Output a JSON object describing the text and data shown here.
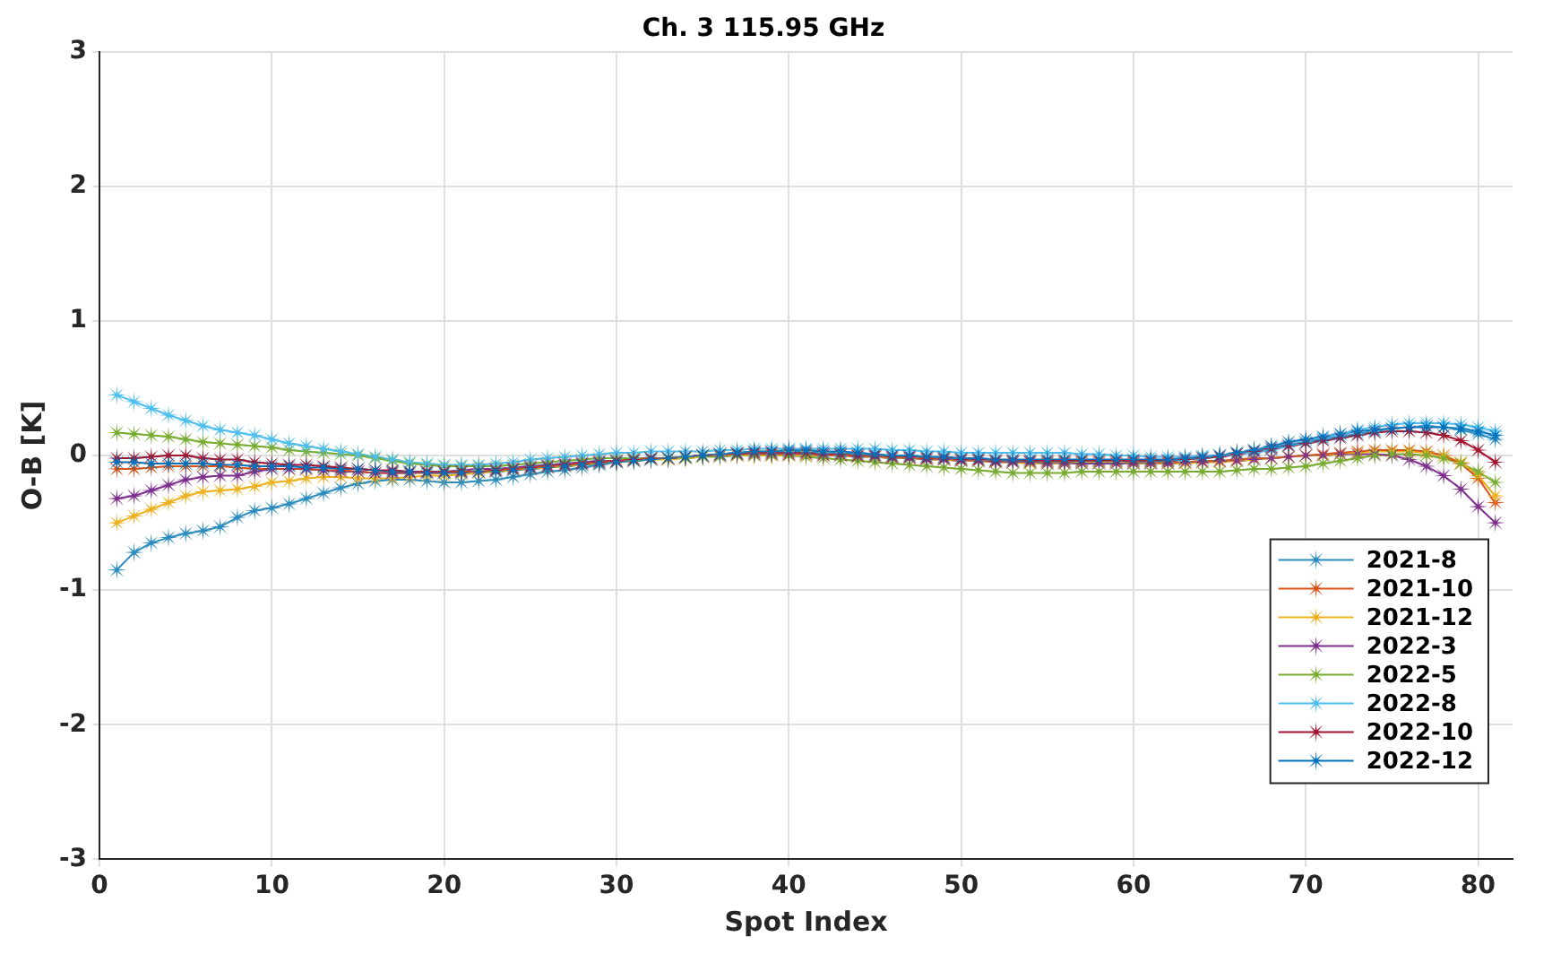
{
  "chart_data": {
    "type": "line",
    "title": "Ch. 3 115.95 GHz",
    "xlabel": "Spot Index",
    "ylabel": "O-B [K]",
    "x": [
      1,
      2,
      3,
      4,
      5,
      6,
      7,
      8,
      9,
      10,
      11,
      12,
      13,
      14,
      15,
      16,
      17,
      18,
      19,
      20,
      21,
      22,
      23,
      24,
      25,
      26,
      27,
      28,
      29,
      30,
      31,
      32,
      33,
      34,
      35,
      36,
      37,
      38,
      39,
      40,
      41,
      42,
      43,
      44,
      45,
      46,
      47,
      48,
      49,
      50,
      51,
      52,
      53,
      54,
      55,
      56,
      57,
      58,
      59,
      60,
      61,
      62,
      63,
      64,
      65,
      66,
      67,
      68,
      69,
      70,
      71,
      72,
      73,
      74,
      75,
      76,
      77,
      78,
      79,
      80,
      81
    ],
    "xlim": [
      0,
      82
    ],
    "xticks": [
      0,
      10,
      20,
      30,
      40,
      50,
      60,
      70,
      80
    ],
    "ylim": [
      -3,
      3
    ],
    "yticks": [
      -3,
      -2,
      -1,
      0,
      1,
      2,
      3
    ],
    "grid": true,
    "legend": "bottom right",
    "marker": "star",
    "line_style": "solid",
    "series": [
      {
        "name": "2021-8",
        "color": "#2b8cbe",
        "values": [
          -0.85,
          -0.72,
          -0.65,
          -0.61,
          -0.58,
          -0.56,
          -0.53,
          -0.46,
          -0.41,
          -0.39,
          -0.36,
          -0.32,
          -0.28,
          -0.24,
          -0.21,
          -0.19,
          -0.18,
          -0.18,
          -0.19,
          -0.2,
          -0.2,
          -0.19,
          -0.18,
          -0.16,
          -0.14,
          -0.12,
          -0.11,
          -0.09,
          -0.07,
          -0.05,
          -0.04,
          -0.03,
          -0.02,
          -0.01,
          0,
          0.01,
          0.02,
          0.03,
          0.03,
          0.03,
          0.03,
          0.02,
          0.02,
          0.01,
          0,
          0,
          -0.01,
          -0.01,
          -0.02,
          -0.03,
          -0.03,
          -0.04,
          -0.04,
          -0.05,
          -0.05,
          -0.05,
          -0.05,
          -0.05,
          -0.05,
          -0.05,
          -0.05,
          -0.04,
          -0.03,
          -0.02,
          0,
          0.02,
          0.04,
          0.06,
          0.08,
          0.1,
          0.12,
          0.14,
          0.16,
          0.18,
          0.2,
          0.21,
          0.22,
          0.21,
          0.19,
          0.16,
          0.12
        ]
      },
      {
        "name": "2021-10",
        "color": "#d95319",
        "values": [
          -0.1,
          -0.1,
          -0.09,
          -0.08,
          -0.08,
          -0.08,
          -0.08,
          -0.09,
          -0.1,
          -0.1,
          -0.1,
          -0.1,
          -0.11,
          -0.11,
          -0.12,
          -0.13,
          -0.13,
          -0.13,
          -0.13,
          -0.13,
          -0.12,
          -0.12,
          -0.11,
          -0.1,
          -0.09,
          -0.08,
          -0.07,
          -0.06,
          -0.05,
          -0.04,
          -0.03,
          -0.02,
          -0.02,
          -0.01,
          0,
          0,
          0.01,
          0.01,
          0.01,
          0.01,
          0.01,
          0,
          0,
          0,
          -0.01,
          -0.01,
          -0.02,
          -0.02,
          -0.03,
          -0.03,
          -0.04,
          -0.04,
          -0.05,
          -0.05,
          -0.05,
          -0.05,
          -0.05,
          -0.05,
          -0.05,
          -0.05,
          -0.05,
          -0.05,
          -0.05,
          -0.04,
          -0.04,
          -0.03,
          -0.02,
          -0.02,
          -0.01,
          0,
          0.01,
          0.02,
          0.03,
          0.04,
          0.04,
          0.04,
          0.03,
          0,
          -0.06,
          -0.17,
          -0.35
        ]
      },
      {
        "name": "2021-12",
        "color": "#edb120",
        "values": [
          -0.5,
          -0.45,
          -0.4,
          -0.35,
          -0.3,
          -0.27,
          -0.26,
          -0.25,
          -0.23,
          -0.2,
          -0.19,
          -0.17,
          -0.16,
          -0.16,
          -0.17,
          -0.17,
          -0.17,
          -0.16,
          -0.15,
          -0.15,
          -0.14,
          -0.13,
          -0.12,
          -0.11,
          -0.1,
          -0.09,
          -0.08,
          -0.07,
          -0.06,
          -0.05,
          -0.04,
          -0.03,
          -0.03,
          -0.02,
          -0.01,
          0,
          0,
          0,
          0,
          0,
          0,
          0,
          0,
          -0.01,
          -0.01,
          -0.02,
          -0.02,
          -0.03,
          -0.03,
          -0.04,
          -0.04,
          -0.05,
          -0.05,
          -0.06,
          -0.06,
          -0.06,
          -0.05,
          -0.05,
          -0.05,
          -0.06,
          -0.06,
          -0.06,
          -0.06,
          -0.05,
          -0.05,
          -0.04,
          -0.03,
          -0.02,
          -0.01,
          0,
          0,
          0.01,
          0.02,
          0.03,
          0.03,
          0.03,
          0.02,
          0,
          -0.05,
          -0.15,
          -0.3
        ]
      },
      {
        "name": "2022-3",
        "color": "#7e2f8e",
        "values": [
          -0.32,
          -0.3,
          -0.26,
          -0.22,
          -0.18,
          -0.16,
          -0.15,
          -0.15,
          -0.12,
          -0.1,
          -0.1,
          -0.1,
          -0.11,
          -0.12,
          -0.12,
          -0.13,
          -0.13,
          -0.13,
          -0.12,
          -0.12,
          -0.11,
          -0.1,
          -0.1,
          -0.09,
          -0.08,
          -0.07,
          -0.06,
          -0.05,
          -0.04,
          -0.04,
          -0.03,
          -0.02,
          -0.02,
          -0.01,
          0,
          0,
          0.01,
          0.01,
          0.01,
          0.01,
          0.01,
          0,
          0,
          -0.01,
          -0.01,
          -0.02,
          -0.02,
          -0.03,
          -0.03,
          -0.04,
          -0.04,
          -0.05,
          -0.05,
          -0.05,
          -0.06,
          -0.06,
          -0.06,
          -0.06,
          -0.06,
          -0.06,
          -0.06,
          -0.06,
          -0.05,
          -0.05,
          -0.04,
          -0.04,
          -0.03,
          -0.02,
          -0.01,
          0,
          0,
          0.01,
          0.01,
          0.01,
          0,
          -0.03,
          -0.08,
          -0.15,
          -0.25,
          -0.38,
          -0.5
        ]
      },
      {
        "name": "2022-5",
        "color": "#77ac30",
        "values": [
          0.17,
          0.16,
          0.15,
          0.14,
          0.12,
          0.1,
          0.09,
          0.08,
          0.07,
          0.06,
          0.04,
          0.03,
          0.02,
          0.01,
          0,
          -0.02,
          -0.04,
          -0.06,
          -0.07,
          -0.08,
          -0.08,
          -0.08,
          -0.08,
          -0.07,
          -0.06,
          -0.05,
          -0.04,
          -0.03,
          -0.02,
          -0.02,
          -0.02,
          -0.02,
          -0.02,
          -0.02,
          -0.01,
          -0.01,
          0,
          0,
          0,
          0,
          -0.01,
          -0.02,
          -0.03,
          -0.04,
          -0.05,
          -0.06,
          -0.07,
          -0.08,
          -0.09,
          -0.1,
          -0.11,
          -0.12,
          -0.13,
          -0.13,
          -0.13,
          -0.13,
          -0.12,
          -0.12,
          -0.12,
          -0.12,
          -0.12,
          -0.12,
          -0.12,
          -0.12,
          -0.12,
          -0.11,
          -0.1,
          -0.1,
          -0.09,
          -0.08,
          -0.06,
          -0.04,
          -0.02,
          0,
          0.01,
          0.01,
          0,
          -0.02,
          -0.06,
          -0.12,
          -0.2
        ]
      },
      {
        "name": "2022-8",
        "color": "#4dbeee",
        "values": [
          0.45,
          0.4,
          0.35,
          0.3,
          0.26,
          0.22,
          0.19,
          0.17,
          0.15,
          0.12,
          0.09,
          0.07,
          0.05,
          0.03,
          0.01,
          -0.01,
          -0.03,
          -0.05,
          -0.06,
          -0.07,
          -0.07,
          -0.07,
          -0.06,
          -0.05,
          -0.03,
          -0.02,
          -0.01,
          0,
          0.01,
          0.02,
          0.02,
          0.03,
          0.03,
          0.03,
          0.03,
          0.04,
          0.04,
          0.05,
          0.05,
          0.05,
          0.05,
          0.05,
          0.05,
          0.05,
          0.05,
          0.04,
          0.04,
          0.03,
          0.03,
          0.02,
          0.02,
          0.02,
          0.02,
          0.02,
          0.02,
          0.02,
          0.01,
          0.01,
          0,
          0,
          -0.01,
          -0.01,
          -0.01,
          0,
          0,
          0.01,
          0.02,
          0.04,
          0.07,
          0.1,
          0.13,
          0.16,
          0.19,
          0.21,
          0.23,
          0.24,
          0.24,
          0.24,
          0.23,
          0.21,
          0.18
        ]
      },
      {
        "name": "2022-10",
        "color": "#a2142f",
        "values": [
          -0.02,
          -0.02,
          -0.01,
          0,
          0,
          -0.02,
          -0.03,
          -0.03,
          -0.05,
          -0.06,
          -0.07,
          -0.07,
          -0.08,
          -0.09,
          -0.1,
          -0.11,
          -0.11,
          -0.12,
          -0.12,
          -0.12,
          -0.12,
          -0.12,
          -0.11,
          -0.1,
          -0.09,
          -0.08,
          -0.07,
          -0.06,
          -0.05,
          -0.04,
          -0.03,
          -0.02,
          -0.02,
          -0.01,
          0,
          0.01,
          0.01,
          0.02,
          0.02,
          0.02,
          0.02,
          0.01,
          0.01,
          0,
          0,
          -0.01,
          -0.01,
          -0.02,
          -0.02,
          -0.03,
          -0.03,
          -0.04,
          -0.04,
          -0.04,
          -0.04,
          -0.04,
          -0.04,
          -0.04,
          -0.04,
          -0.04,
          -0.04,
          -0.04,
          -0.03,
          -0.02,
          -0.01,
          0.01,
          0.03,
          0.05,
          0.07,
          0.09,
          0.11,
          0.13,
          0.15,
          0.17,
          0.18,
          0.18,
          0.17,
          0.15,
          0.11,
          0.04,
          -0.05
        ]
      },
      {
        "name": "2022-12",
        "color": "#0072bd",
        "values": [
          -0.05,
          -0.05,
          -0.06,
          -0.06,
          -0.06,
          -0.06,
          -0.07,
          -0.07,
          -0.08,
          -0.08,
          -0.08,
          -0.09,
          -0.09,
          -0.1,
          -0.1,
          -0.11,
          -0.12,
          -0.12,
          -0.13,
          -0.13,
          -0.13,
          -0.12,
          -0.12,
          -0.11,
          -0.1,
          -0.09,
          -0.08,
          -0.07,
          -0.06,
          -0.05,
          -0.04,
          -0.03,
          -0.02,
          -0.01,
          0,
          0.01,
          0.02,
          0.03,
          0.03,
          0.04,
          0.04,
          0.03,
          0.03,
          0.02,
          0.01,
          0,
          0,
          -0.01,
          -0.01,
          -0.02,
          -0.02,
          -0.03,
          -0.03,
          -0.03,
          -0.03,
          -0.03,
          -0.03,
          -0.03,
          -0.03,
          -0.03,
          -0.03,
          -0.03,
          -0.02,
          -0.01,
          0,
          0.02,
          0.04,
          0.07,
          0.1,
          0.12,
          0.14,
          0.16,
          0.18,
          0.19,
          0.2,
          0.21,
          0.21,
          0.21,
          0.2,
          0.18,
          0.15
        ]
      }
    ]
  }
}
